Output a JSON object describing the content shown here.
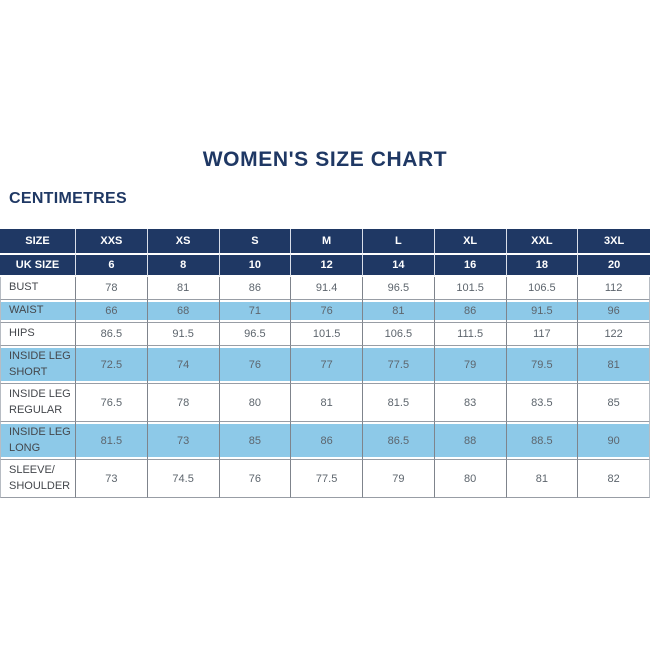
{
  "page": {
    "title": "WOMEN'S SIZE CHART",
    "units_label": "CENTIMETRES"
  },
  "colors": {
    "header_navy": "#1f3864",
    "row_highlight_blue": "#8dc9e8",
    "value_text_gray": "#5d656d",
    "label_text_gray": "#44474c"
  },
  "chart_data": {
    "type": "table",
    "title": "WOMEN'S SIZE CHART",
    "units": "CENTIMETRES",
    "columns": [
      "SIZE",
      "XXS",
      "XS",
      "S",
      "M",
      "L",
      "XL",
      "XXL",
      "3XL"
    ],
    "uk_size_row": {
      "label": "UK SIZE",
      "values": [
        "6",
        "8",
        "10",
        "12",
        "14",
        "16",
        "18",
        "20"
      ]
    },
    "rows": [
      {
        "label": "BUST",
        "values": [
          "78",
          "81",
          "86",
          "91.4",
          "96.5",
          "101.5",
          "106.5",
          "112"
        ],
        "highlighted": false
      },
      {
        "label": "WAIST",
        "values": [
          "66",
          "68",
          "71",
          "76",
          "81",
          "86",
          "91.5",
          "96"
        ],
        "highlighted": true
      },
      {
        "label": "HIPS",
        "values": [
          "86.5",
          "91.5",
          "96.5",
          "101.5",
          "106.5",
          "111.5",
          "117",
          "122"
        ],
        "highlighted": false
      },
      {
        "label": "INSIDE LEG SHORT",
        "label_lines": [
          "INSIDE LEG",
          "SHORT"
        ],
        "values": [
          "72.5",
          "74",
          "76",
          "77",
          "77.5",
          "79",
          "79.5",
          "81"
        ],
        "highlighted": true
      },
      {
        "label": "INSIDE LEG REGULAR",
        "label_lines": [
          "INSIDE LEG",
          "REGULAR"
        ],
        "values": [
          "76.5",
          "78",
          "80",
          "81",
          "81.5",
          "83",
          "83.5",
          "85"
        ],
        "highlighted": false
      },
      {
        "label": "INSIDE LEG LONG",
        "label_lines": [
          "INSIDE LEG",
          "LONG"
        ],
        "values": [
          "81.5",
          "73",
          "85",
          "86",
          "86.5",
          "88",
          "88.5",
          "90"
        ],
        "highlighted": true
      },
      {
        "label": "SLEEVE/SHOULDER",
        "label_lines": [
          "SLEEVE/",
          "SHOULDER"
        ],
        "values": [
          "73",
          "74.5",
          "76",
          "77.5",
          "79",
          "80",
          "81",
          "82"
        ],
        "highlighted": false
      }
    ]
  }
}
